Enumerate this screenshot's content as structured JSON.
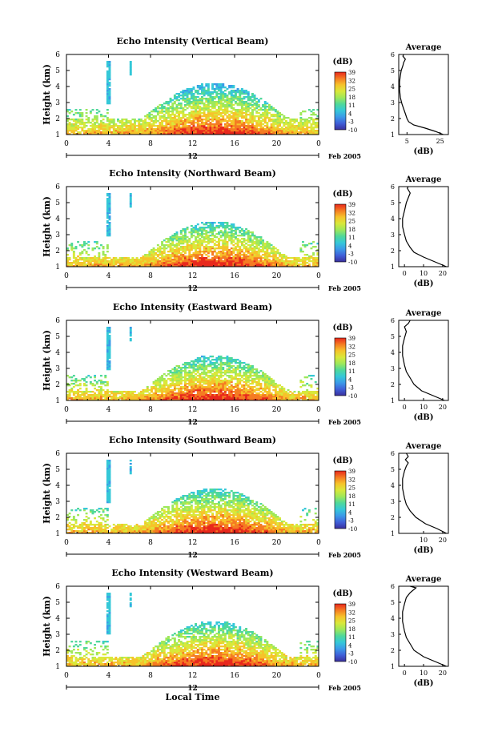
{
  "figure": {
    "xlabel": "Local Time",
    "x_ticks": [
      "0",
      "4",
      "8",
      "12",
      "16",
      "20",
      "0"
    ],
    "day_label": "12",
    "date_label": "Feb 2005",
    "y_ticks": [
      "1",
      "2",
      "3",
      "4",
      "5",
      "6"
    ],
    "ylabel": "Height (km)",
    "colorbar": {
      "unit": "(dB)",
      "ticks": [
        "39",
        "32",
        "25",
        "18",
        "11",
        "4",
        "-3",
        "-10"
      ],
      "colors": [
        "#e8281c",
        "#f57b22",
        "#f6c32a",
        "#d9e83a",
        "#9ee85a",
        "#4fd89a",
        "#35c8d8",
        "#3b9ae8",
        "#3f5fd8",
        "#3a2f9c"
      ]
    },
    "avg_title": "Average",
    "avg_xlabel": "(dB)"
  },
  "chart_data": [
    {
      "type": "heatmap",
      "title": "Echo Intensity (Vertical Beam)",
      "xlabel": "Local Time",
      "ylabel": "Height (km)",
      "xlim": [
        0,
        24
      ],
      "ylim": [
        1,
        6
      ],
      "clim": [
        -10,
        39
      ],
      "avg_profile": {
        "title": "Average",
        "xlabel": "(dB)",
        "xticks": [
          "5",
          "25"
        ],
        "xlim": [
          0,
          30
        ],
        "points": [
          [
            27,
            1.0
          ],
          [
            22,
            1.2
          ],
          [
            16,
            1.4
          ],
          [
            9,
            1.6
          ],
          [
            6,
            1.8
          ],
          [
            5,
            2.0
          ],
          [
            4,
            2.3
          ],
          [
            3,
            2.6
          ],
          [
            2,
            2.9
          ],
          [
            1,
            3.3
          ],
          [
            0.5,
            3.8
          ],
          [
            0.5,
            4.3
          ],
          [
            1,
            4.7
          ],
          [
            1.5,
            5.0
          ],
          [
            2.5,
            5.3
          ],
          [
            3,
            5.5
          ],
          [
            4,
            5.7
          ],
          [
            2.5,
            5.9
          ],
          [
            3,
            6.0
          ]
        ]
      }
    },
    {
      "type": "heatmap",
      "title": "Echo Intensity (Northward Beam)",
      "xlabel": "Local Time",
      "ylabel": "Height (km)",
      "xlim": [
        0,
        24
      ],
      "ylim": [
        1,
        6
      ],
      "clim": [
        -10,
        39
      ],
      "avg_profile": {
        "title": "Average",
        "xlabel": "(dB)",
        "xticks": [
          "0",
          "10",
          "20"
        ],
        "xlim": [
          -3,
          23
        ],
        "points": [
          [
            22,
            1.0
          ],
          [
            16,
            1.3
          ],
          [
            10,
            1.6
          ],
          [
            5,
            1.9
          ],
          [
            3,
            2.2
          ],
          [
            1,
            2.6
          ],
          [
            0,
            3.0
          ],
          [
            -1,
            3.5
          ],
          [
            -1,
            4.0
          ],
          [
            0,
            4.5
          ],
          [
            1,
            5.0
          ],
          [
            2,
            5.3
          ],
          [
            3,
            5.6
          ],
          [
            1.5,
            5.9
          ],
          [
            2,
            6.0
          ]
        ]
      }
    },
    {
      "type": "heatmap",
      "title": "Echo Intensity (Eastward Beam)",
      "xlabel": "Local Time",
      "ylabel": "Height (km)",
      "xlim": [
        0,
        24
      ],
      "ylim": [
        1,
        6
      ],
      "clim": [
        -10,
        39
      ],
      "avg_profile": {
        "title": "Average",
        "xlabel": "(dB)",
        "xticks": [
          "0",
          "10",
          "20"
        ],
        "xlim": [
          -3,
          23
        ],
        "points": [
          [
            21,
            1.0
          ],
          [
            15,
            1.3
          ],
          [
            9,
            1.6
          ],
          [
            5,
            2.0
          ],
          [
            3,
            2.4
          ],
          [
            1,
            2.8
          ],
          [
            0,
            3.2
          ],
          [
            -1,
            3.8
          ],
          [
            -1,
            4.4
          ],
          [
            0,
            4.9
          ],
          [
            1,
            5.3
          ],
          [
            0,
            5.6
          ],
          [
            2,
            5.8
          ],
          [
            3,
            6.0
          ]
        ]
      }
    },
    {
      "type": "heatmap",
      "title": "Echo Intensity (Southward Beam)",
      "xlabel": "Local Time",
      "ylabel": "Height (km)",
      "xlim": [
        0,
        24
      ],
      "ylim": [
        1,
        6
      ],
      "clim": [
        -10,
        39
      ],
      "avg_profile": {
        "title": "Average",
        "xlabel": "(dB)",
        "xticks": [
          "10",
          "20"
        ],
        "xlim": [
          -3,
          23
        ],
        "points": [
          [
            22,
            1.0
          ],
          [
            17,
            1.3
          ],
          [
            11,
            1.6
          ],
          [
            6,
            2.0
          ],
          [
            3,
            2.4
          ],
          [
            1,
            2.8
          ],
          [
            0,
            3.2
          ],
          [
            -1,
            3.8
          ],
          [
            -1,
            4.4
          ],
          [
            0,
            4.9
          ],
          [
            1,
            5.2
          ],
          [
            2,
            5.4
          ],
          [
            0.5,
            5.6
          ],
          [
            2,
            5.8
          ],
          [
            1,
            6.0
          ]
        ]
      }
    },
    {
      "type": "heatmap",
      "title": "Echo Intensity (Westward Beam)",
      "xlabel": "Local Time",
      "ylabel": "Height (km)",
      "xlim": [
        0,
        24
      ],
      "ylim": [
        1,
        6
      ],
      "clim": [
        -10,
        39
      ],
      "avg_profile": {
        "title": "Average",
        "xlabel": "(dB)",
        "xticks": [
          "0",
          "10",
          "20"
        ],
        "xlim": [
          -3,
          23
        ],
        "points": [
          [
            22,
            1.0
          ],
          [
            16,
            1.3
          ],
          [
            10,
            1.6
          ],
          [
            5,
            2.0
          ],
          [
            3,
            2.4
          ],
          [
            1,
            2.8
          ],
          [
            0,
            3.2
          ],
          [
            -1,
            3.8
          ],
          [
            -1,
            4.4
          ],
          [
            0,
            4.9
          ],
          [
            1,
            5.3
          ],
          [
            3,
            5.6
          ],
          [
            6,
            5.9
          ],
          [
            3,
            6.0
          ]
        ]
      }
    }
  ]
}
